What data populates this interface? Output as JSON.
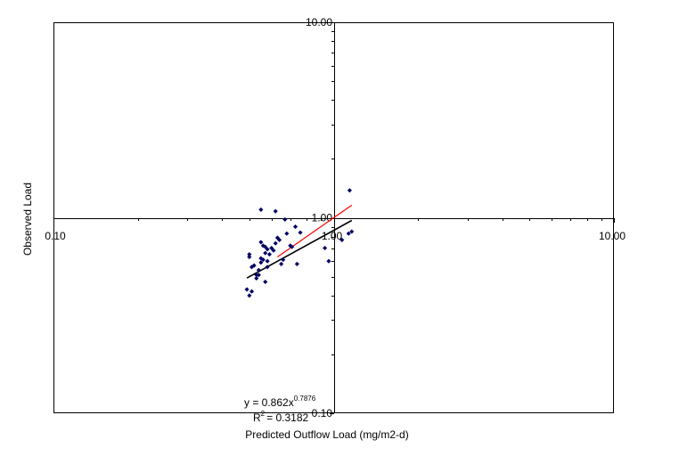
{
  "chart_data": {
    "type": "scatter",
    "title": "",
    "xlabel": "Predicted Outflow Load  (mg/m2-d)",
    "ylabel": "Observed Load",
    "xscale": "log",
    "yscale": "log",
    "xlim": [
      0.1,
      10
    ],
    "ylim": [
      0.1,
      10
    ],
    "x_tick_labels": [
      "0.10",
      "1.00",
      "10.00"
    ],
    "y_tick_labels": [
      "10.00",
      "1.00",
      "0.10"
    ],
    "grid": false,
    "legend": "none",
    "colors": {
      "points": "#000066",
      "trendline": "#000000",
      "one_to_one_line": "#ff0000",
      "axes": "#000000"
    },
    "series": [
      {
        "values": [
          [
            0.5,
            0.65
          ],
          [
            0.5,
            0.63
          ],
          [
            0.49,
            0.43
          ],
          [
            0.5,
            0.4
          ],
          [
            0.51,
            0.42
          ],
          [
            0.51,
            0.56
          ],
          [
            0.52,
            0.57
          ],
          [
            0.53,
            0.51
          ],
          [
            0.53,
            0.49
          ],
          [
            0.54,
            0.51
          ],
          [
            0.54,
            0.54
          ],
          [
            0.55,
            0.59
          ],
          [
            0.55,
            0.62
          ],
          [
            0.55,
            0.75
          ],
          [
            0.56,
            0.72
          ],
          [
            0.56,
            0.61
          ],
          [
            0.57,
            0.66
          ],
          [
            0.57,
            0.71
          ],
          [
            0.57,
            0.47
          ],
          [
            0.58,
            0.56
          ],
          [
            0.58,
            0.6
          ],
          [
            0.58,
            0.69
          ],
          [
            0.59,
            0.65
          ],
          [
            0.6,
            0.7
          ],
          [
            0.61,
            0.68
          ],
          [
            0.62,
            0.74
          ],
          [
            0.63,
            0.79
          ],
          [
            0.64,
            0.77
          ],
          [
            0.65,
            0.58
          ],
          [
            0.66,
            0.61
          ],
          [
            0.67,
            0.98
          ],
          [
            0.68,
            0.83
          ],
          [
            0.7,
            0.72
          ],
          [
            0.71,
            0.71
          ],
          [
            0.73,
            0.9
          ],
          [
            0.74,
            0.58
          ],
          [
            0.76,
            0.84
          ],
          [
            0.55,
            1.1
          ],
          [
            0.62,
            1.08
          ],
          [
            0.93,
            0.7
          ],
          [
            0.96,
            0.6
          ],
          [
            1.07,
            0.77
          ],
          [
            1.13,
            0.83
          ],
          [
            1.14,
            1.38
          ],
          [
            1.16,
            0.85
          ]
        ]
      }
    ],
    "trendline": {
      "equation": "y = 0.862x",
      "exponent": "0.7876",
      "r2_label": "R",
      "r2_value": "= 0.3182",
      "a": 0.862,
      "b": 0.7876,
      "x_range": [
        0.49,
        1.16
      ]
    },
    "one_to_one_line": {
      "x_range": [
        0.63,
        1.16
      ]
    }
  }
}
